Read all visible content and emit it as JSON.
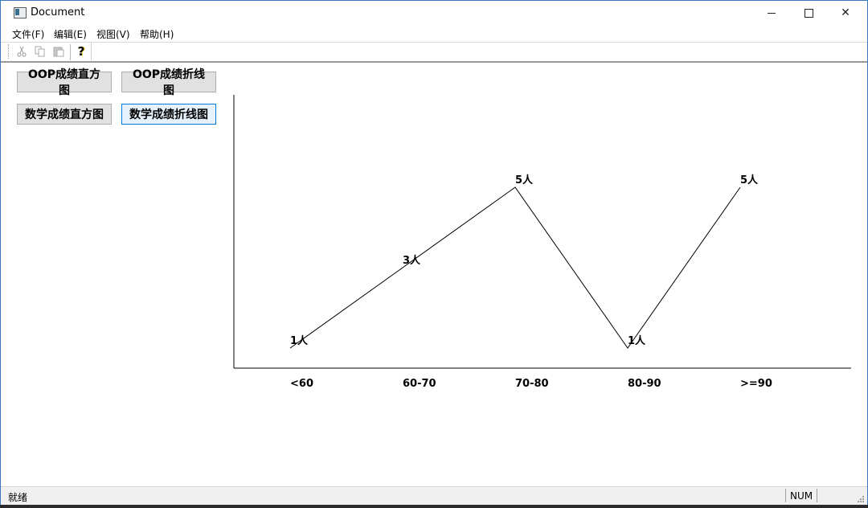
{
  "window": {
    "title": "Document"
  },
  "titlebar_buttons": {
    "minimize": "—",
    "maximize": "☐",
    "close": "✕"
  },
  "menu": [
    "文件(F)",
    "编辑(E)",
    "视图(V)",
    "帮助(H)"
  ],
  "toolbar": {
    "icons": [
      "cut-icon",
      "copy-icon",
      "paste-icon",
      "help-icon"
    ],
    "help_glyph": "?"
  },
  "panel": {
    "buttons": [
      "OOP成绩直方图",
      "OOP成绩折线图",
      "数学成绩直方图",
      "数学成绩折线图"
    ],
    "focused_button": "数学成绩折线图"
  },
  "chart_data": {
    "type": "line",
    "categories": [
      "<60",
      "60-70",
      "70-80",
      "80-90",
      ">=90"
    ],
    "values": [
      1,
      3,
      5,
      1,
      5
    ],
    "data_labels": [
      "1人",
      "3人",
      "5人",
      "1人",
      "5人"
    ],
    "title": "",
    "xlabel": "",
    "ylabel": "",
    "ylim": [
      0,
      6
    ],
    "grid": false,
    "line_color": "#000000"
  },
  "statusbar": {
    "text": "就绪",
    "num": "NUM"
  }
}
